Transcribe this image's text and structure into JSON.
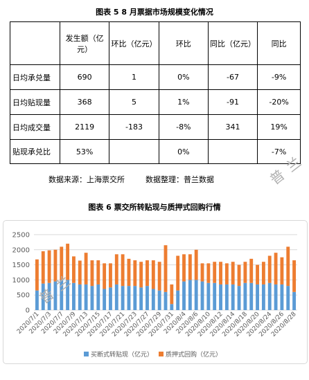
{
  "figure5": {
    "title": "图表 5     8 月票据市场规模变化情况",
    "headers": [
      "",
      "发生额（亿元）",
      "环比（亿元）",
      "环比",
      "同比（亿元）",
      "同比"
    ],
    "rows": [
      [
        "日均承兑量",
        "690",
        "1",
        "0%",
        "-67",
        "-9%"
      ],
      [
        "日均贴现量",
        "368",
        "5",
        "1%",
        "-91",
        "-20%"
      ],
      [
        "日均成交量",
        "2119",
        "-183",
        "-8%",
        "341",
        "19%"
      ],
      [
        "贴现承兑比",
        "53%",
        "",
        "0%",
        "",
        "-7%"
      ]
    ],
    "source": "数据来源：上海票交所",
    "compiled": "数据整理：普兰数据"
  },
  "figure6": {
    "title": "图表 6     票交所转贴现与质押式回购行情"
  },
  "watermarks": [
    "普兰",
    "普兰"
  ],
  "chart_data": {
    "type": "bar",
    "stacked": true,
    "categories": [
      "2020/7/1",
      "2020/7/2",
      "2020/7/3",
      "2020/7/6",
      "2020/7/7",
      "2020/7/8",
      "2020/7/9",
      "2020/7/10",
      "2020/7/13",
      "2020/7/14",
      "2020/7/15",
      "2020/7/16",
      "2020/7/17",
      "2020/7/20",
      "2020/7/21",
      "2020/7/22",
      "2020/7/23",
      "2020/7/24",
      "2020/7/27",
      "2020/7/28",
      "2020/7/29",
      "2020/7/30",
      "2020/7/31",
      "2020/8/3",
      "2020/8/4",
      "2020/8/5",
      "2020/8/6",
      "2020/8/7",
      "2020/8/10",
      "2020/8/11",
      "2020/8/12",
      "2020/8/13",
      "2020/8/14",
      "2020/8/17",
      "2020/8/18",
      "2020/8/19",
      "2020/8/20",
      "2020/8/21",
      "2020/8/24",
      "2020/8/25",
      "2020/8/26",
      "2020/8/27",
      "2020/8/28"
    ],
    "tick_labels": [
      "2020/7/1",
      "2020/7/3",
      "2020/7/7",
      "2020/7/9",
      "2020/7/13",
      "2020/7/15",
      "2020/7/17",
      "2020/7/21",
      "2020/7/23",
      "2020/7/27",
      "2020/7/29",
      "2020/7/31",
      "2020/8/4",
      "2020/8/6",
      "2020/8/10",
      "2020/8/12",
      "2020/8/14",
      "2020/8/18",
      "2020/8/20",
      "2020/8/24",
      "2020/8/26",
      "2020/8/28"
    ],
    "series": [
      {
        "name": "买断式转贴现（亿元）",
        "color": "#5b9bd5",
        "values": [
          650,
          880,
          900,
          950,
          1000,
          1000,
          900,
          850,
          850,
          800,
          850,
          700,
          750,
          850,
          800,
          800,
          800,
          750,
          800,
          700,
          650,
          600,
          200,
          650,
          950,
          1000,
          1000,
          950,
          900,
          900,
          850,
          850,
          850,
          800,
          900,
          900,
          850,
          850,
          900,
          850,
          850,
          800,
          600
        ]
      },
      {
        "name": "质押式回购（亿元）",
        "color": "#ed7d31",
        "values": [
          1030,
          1070,
          1080,
          1050,
          1100,
          1200,
          880,
          790,
          1050,
          850,
          800,
          850,
          800,
          1000,
          1050,
          900,
          850,
          850,
          850,
          950,
          950,
          1550,
          650,
          1150,
          900,
          850,
          1000,
          600,
          650,
          700,
          750,
          700,
          750,
          700,
          700,
          800,
          650,
          750,
          900,
          1050,
          900,
          1300,
          1050
        ]
      }
    ],
    "ylim": [
      0,
      2500
    ],
    "yticks": [
      0,
      500,
      1000,
      1500,
      2000,
      2500
    ],
    "grid": true,
    "legend": "bottom"
  }
}
